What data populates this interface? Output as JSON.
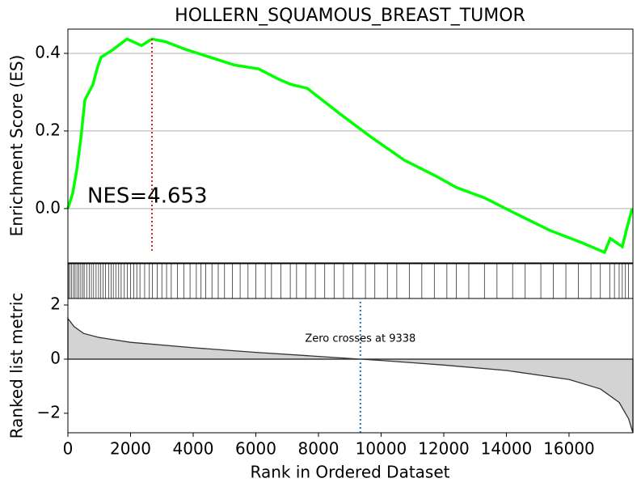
{
  "chart_data": [
    {
      "type": "line",
      "title": "HOLLERN_SQUAMOUS_BREAST_TUMOR",
      "y_label": "Enrichment Score (ES)",
      "annotation": "NES=4.653",
      "x": [
        0,
        155,
        284,
        413,
        542,
        800,
        929,
        1058,
        1445,
        1884,
        2348,
        2684,
        3123,
        3768,
        4542,
        5316,
        6090,
        6735,
        7123,
        7639,
        8671,
        9703,
        10735,
        11768,
        12413,
        13316,
        14348,
        15381,
        16413,
        17135,
        17316,
        17703,
        17832,
        18013
      ],
      "values": [
        0,
        0.04,
        0.1,
        0.18,
        0.28,
        0.32,
        0.36,
        0.39,
        0.41,
        0.437,
        0.42,
        0.437,
        0.43,
        0.41,
        0.39,
        0.37,
        0.36,
        0.333,
        0.32,
        0.31,
        0.245,
        0.183,
        0.125,
        0.083,
        0.054,
        0.027,
        -0.015,
        -0.056,
        -0.088,
        -0.113,
        -0.077,
        -0.098,
        -0.056,
        0
      ],
      "color": "#00ff00",
      "xlim": [
        0,
        18040
      ],
      "ylim": [
        -0.14,
        0.4625
      ],
      "yticks": [
        {
          "value": 0,
          "label": "0.0"
        },
        {
          "value": 0.2,
          "label": "0.2"
        },
        {
          "value": 0.4,
          "label": "0.4"
        }
      ],
      "grid": true,
      "vline_x": 2684,
      "vline_color": "#e0201b"
    },
    {
      "type": "hits",
      "xlim": [
        0,
        18040
      ],
      "color": "#333333",
      "x": [
        20,
        60,
        120,
        180,
        230,
        290,
        350,
        410,
        470,
        520,
        600,
        680,
        750,
        820,
        900,
        980,
        1050,
        1120,
        1200,
        1300,
        1380,
        1450,
        1530,
        1620,
        1700,
        1800,
        1900,
        2000,
        2100,
        2200,
        2300,
        2450,
        2600,
        2700,
        2850,
        3000,
        3150,
        3300,
        3500,
        3700,
        3900,
        4100,
        4250,
        4400,
        4600,
        4800,
        5000,
        5250,
        5500,
        5750,
        6000,
        6300,
        6500,
        6800,
        7100,
        7300,
        7600,
        7900,
        8200,
        8500,
        8800,
        9100,
        9500,
        9800,
        10200,
        10500,
        10900,
        11300,
        11700,
        12100,
        12400,
        12800,
        13300,
        13700,
        14200,
        14600,
        15100,
        15500,
        15900,
        16300,
        16700,
        17000,
        17300,
        17450,
        17600,
        17700,
        17800,
        17900
      ]
    },
    {
      "type": "area",
      "y_label": "Ranked list metric",
      "x_label": "Rank in Ordered Dataset",
      "annotation": "Zero crosses at 9338",
      "x": [
        0,
        200,
        500,
        1000,
        2000,
        4000,
        6000,
        8000,
        9338,
        10000,
        12000,
        14000,
        16000,
        17000,
        17600,
        17900,
        18040
      ],
      "values": [
        1.5,
        1.2,
        0.95,
        0.8,
        0.62,
        0.42,
        0.25,
        0.1,
        0,
        -0.05,
        -0.22,
        -0.42,
        -0.75,
        -1.1,
        -1.6,
        -2.2,
        -2.72
      ],
      "color": "#d3d3d3",
      "zero_cross": 9338,
      "xlim": [
        0,
        18040
      ],
      "ylim": [
        -2.72,
        2.24
      ],
      "yticks": [
        {
          "value": -2,
          "label": "−2"
        },
        0,
        2
      ],
      "xticks": [
        0,
        2000,
        4000,
        6000,
        8000,
        10000,
        12000,
        14000,
        16000
      ]
    }
  ]
}
